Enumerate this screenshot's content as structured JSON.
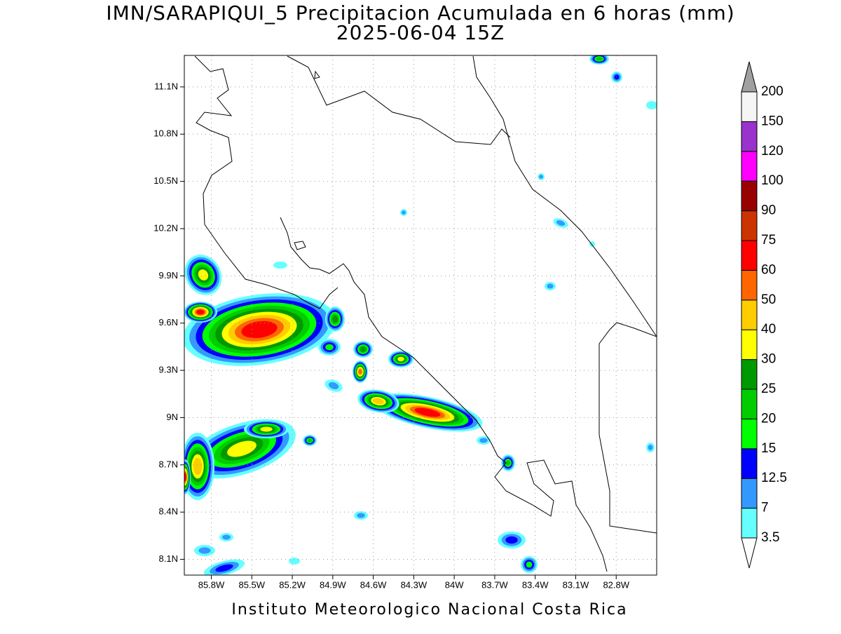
{
  "title": "IMN/SARAPIQUI_5 Precipitacion Acumulada en 6 horas (mm)",
  "subtitle": "2025-06-04 15Z",
  "footer": "Instituto Meteorologico Nacional Costa Rica",
  "map": {
    "xlim": [
      -86.0,
      -82.5
    ],
    "ylim": [
      8.0,
      11.3
    ],
    "grid": true,
    "xticks": [
      {
        "value": -85.8,
        "label": "85.8W"
      },
      {
        "value": -85.5,
        "label": "85.5W"
      },
      {
        "value": -85.2,
        "label": "85.2W"
      },
      {
        "value": -84.9,
        "label": "84.9W"
      },
      {
        "value": -84.6,
        "label": "84.6W"
      },
      {
        "value": -84.3,
        "label": "84.3W"
      },
      {
        "value": -84.0,
        "label": "84W"
      },
      {
        "value": -83.7,
        "label": "83.7W"
      },
      {
        "value": -83.4,
        "label": "83.4W"
      },
      {
        "value": -83.1,
        "label": "83.1W"
      },
      {
        "value": -82.8,
        "label": "82.8W"
      }
    ],
    "yticks": [
      {
        "value": 8.1,
        "label": "8.1N"
      },
      {
        "value": 8.4,
        "label": "8.4N"
      },
      {
        "value": 8.7,
        "label": "8.7N"
      },
      {
        "value": 9.0,
        "label": "9N"
      },
      {
        "value": 9.3,
        "label": "9.3N"
      },
      {
        "value": 9.6,
        "label": "9.6N"
      },
      {
        "value": 9.9,
        "label": "9.9N"
      },
      {
        "value": 10.2,
        "label": "10.2N"
      },
      {
        "value": 10.5,
        "label": "10.5N"
      },
      {
        "value": 10.8,
        "label": "10.8N"
      },
      {
        "value": 11.1,
        "label": "11.1N"
      }
    ]
  },
  "legend": {
    "levels": [
      3.5,
      7,
      12.5,
      15,
      20,
      25,
      30,
      40,
      50,
      60,
      75,
      90,
      100,
      120,
      150,
      200
    ],
    "colors": [
      "#66ffff",
      "#3399ff",
      "#0000ff",
      "#00ff00",
      "#00cc00",
      "#009900",
      "#ffff00",
      "#ffcc00",
      "#ff6600",
      "#ff0000",
      "#cc3300",
      "#990000",
      "#ff00ff",
      "#9933cc",
      "#f5f5f5"
    ],
    "below_color": "#ffffff",
    "above_color": "#a0a0a0"
  }
}
